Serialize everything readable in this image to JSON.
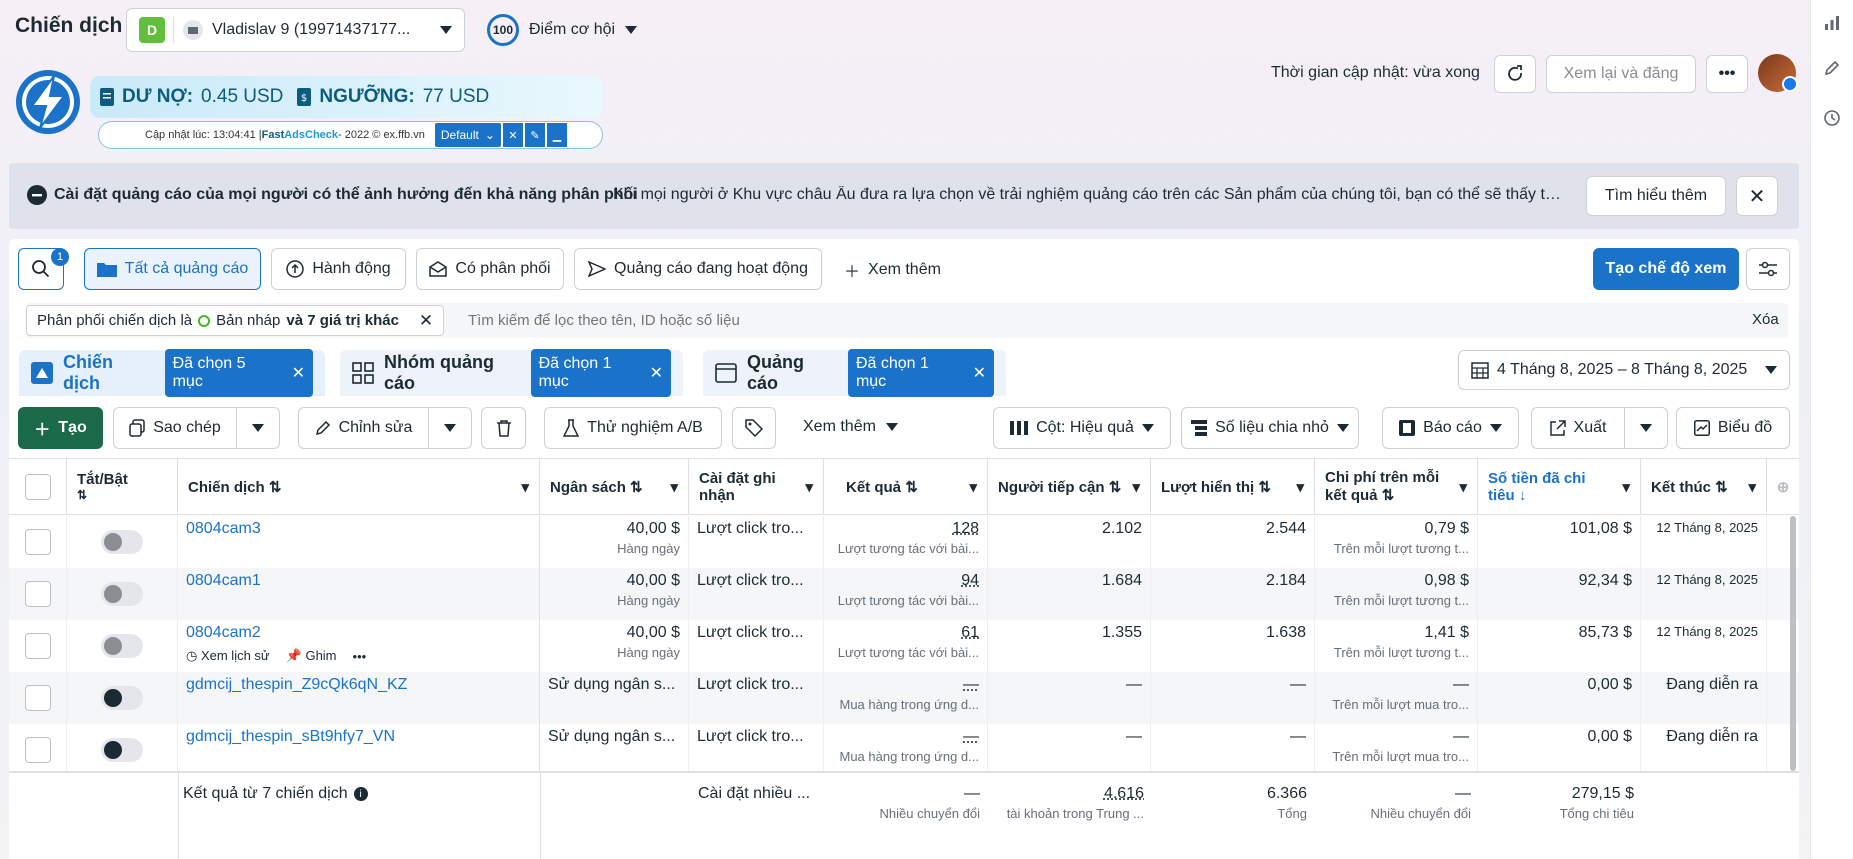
{
  "header": {
    "title": "Chiến dịch",
    "account_badge": "D",
    "account_name": "Vladislav 9 (19971437177...",
    "opportunity_score": "100",
    "opportunity_label": "Điểm cơ hội",
    "update_time": "Thời gian cập nhật: vừa xong",
    "review_button": "Xem lại và đăng"
  },
  "adscheck": {
    "debt_label": "DƯ NỢ:",
    "debt_value": "0.45 USD",
    "threshold_label": "NGƯỠNG:",
    "threshold_value": "77 USD",
    "updated_prefix": "Cập nhật lúc: 13:04:41 | ",
    "brand_fast": "Fast ",
    "brand_adscheck": "AdsCheck",
    "copyright": " - 2022 © ex.ffb.vn",
    "preset": "Default"
  },
  "banner": {
    "title": "Cài đặt quảng cáo của mọi người có thể ảnh hưởng đến khả năng phân phối",
    "text": "Khi mọi người ở Khu vực châu Âu đưa ra lựa chọn về trải nghiệm quảng cáo trên các Sản phẩm của chúng tôi, bạn có thể sẽ thấy tác đ...",
    "learn_more": "Tìm hiểu thêm"
  },
  "filters": {
    "search_badge": "1",
    "all_ads": "Tất cả quảng cáo",
    "actions": "Hành động",
    "delivering": "Có phân phối",
    "active_ads": "Quảng cáo đang hoạt động",
    "see_more": "Xem thêm",
    "create_view": "Tạo chế độ xem",
    "chip_prefix": "Phân phối chiến dịch là",
    "chip_draft": "Bản nháp",
    "chip_suffix": "và 7 giá trị khác",
    "search_placeholder": "Tìm kiếm để lọc theo tên, ID hoặc số liệu",
    "clear": "Xóa"
  },
  "levels": {
    "campaign": "Chiến dịch",
    "campaign_sel": "Đã chọn 5 mục",
    "adset": "Nhóm quảng cáo",
    "adset_sel": "Đã chọn 1 mục",
    "ad": "Quảng cáo",
    "ad_sel": "Đã chọn 1 mục",
    "date_range": "4 Tháng 8, 2025 – 8 Tháng 8, 2025"
  },
  "toolbar": {
    "create": "Tạo",
    "copy": "Sao chép",
    "edit": "Chỉnh sửa",
    "ab_test": "Thử nghiệm A/B",
    "see_more": "Xem thêm",
    "columns": "Cột: Hiệu quả",
    "breakdown": "Số liệu chia nhỏ",
    "reports": "Báo cáo",
    "export": "Xuất",
    "chart": "Biểu đồ"
  },
  "columns": {
    "toggle": "Tắt/Bật",
    "campaign": "Chiến dịch",
    "budget": "Ngân sách",
    "attribution": "Cài đặt ghi nhận",
    "results": "Kết quả",
    "reach": "Người tiếp cận",
    "impressions": "Lượt hiển thị",
    "cpr": "Chi phí trên mỗi kết quả",
    "spent": "Số tiền đã chi tiêu",
    "end": "Kết thúc"
  },
  "rows": [
    {
      "name": "0804cam3",
      "on": false,
      "budget": "40,00 $",
      "budget_sub": "Hàng ngày",
      "attr": "Lượt click tro...",
      "results": "128",
      "results_sub": "Lượt tương tác với bài...",
      "reach": "2.102",
      "impr": "2.544",
      "cpr": "0,79 $",
      "cpr_sub": "Trên mỗi lượt tương t...",
      "spent": "101,08 $",
      "end": "12 Tháng 8, 2025"
    },
    {
      "name": "0804cam1",
      "on": false,
      "budget": "40,00 $",
      "budget_sub": "Hàng ngày",
      "attr": "Lượt click tro...",
      "results": "94",
      "results_sub": "Lượt tương tác với bài...",
      "reach": "1.684",
      "impr": "2.184",
      "cpr": "0,98 $",
      "cpr_sub": "Trên mỗi lượt tương t...",
      "spent": "92,34 $",
      "end": "12 Tháng 8, 2025"
    },
    {
      "name": "0804cam2",
      "on": false,
      "budget": "40,00 $",
      "budget_sub": "Hàng ngày",
      "attr": "Lượt click tro...",
      "results": "61",
      "results_sub": "Lượt tương tác với bài...",
      "reach": "1.355",
      "impr": "1.638",
      "cpr": "1,41 $",
      "cpr_sub": "Trên mỗi lượt tương t...",
      "spent": "85,73 $",
      "end": "12 Tháng 8, 2025"
    },
    {
      "name": "gdmcij_thespin_Z9cQk6qN_KZ",
      "on": true,
      "budget": "Sử dụng ngân s...",
      "budget_sub": "",
      "attr": "Lượt click tro...",
      "results": "—",
      "results_sub": "Mua hàng trong ứng d...",
      "reach": "—",
      "impr": "—",
      "cpr": "—",
      "cpr_sub": "Trên mỗi lượt mua tro...",
      "spent": "0,00 $",
      "end": "Đang diễn ra"
    },
    {
      "name": "gdmcij_thespin_sBt9hfy7_VN",
      "on": true,
      "budget": "Sử dụng ngân s...",
      "budget_sub": "",
      "attr": "Lượt click tro...",
      "results": "—",
      "results_sub": "Mua hàng trong ứng d...",
      "reach": "—",
      "impr": "—",
      "cpr": "—",
      "cpr_sub": "Trên mỗi lượt mua tro...",
      "spent": "0,00 $",
      "end": "Đang diễn ra"
    }
  ],
  "row_actions": {
    "history": "Xem lịch sử",
    "pin": "Ghim"
  },
  "totals": {
    "label": "Kết quả từ 7 chiến dịch",
    "attr": "Cài đặt nhiều ...",
    "results": "—",
    "results_sub": "Nhiều chuyển đổi",
    "reach": "4.616",
    "reach_sub": "tài khoản trong Trung ...",
    "impr": "6.366",
    "impr_sub": "Tổng",
    "cpr": "—",
    "cpr_sub": "Nhiều chuyển đổi",
    "spent": "279,15 $",
    "spent_sub": "Tổng chi tiêu"
  },
  "colors": {
    "accent": "#1a73c8",
    "create_green": "#1b6b4a"
  }
}
